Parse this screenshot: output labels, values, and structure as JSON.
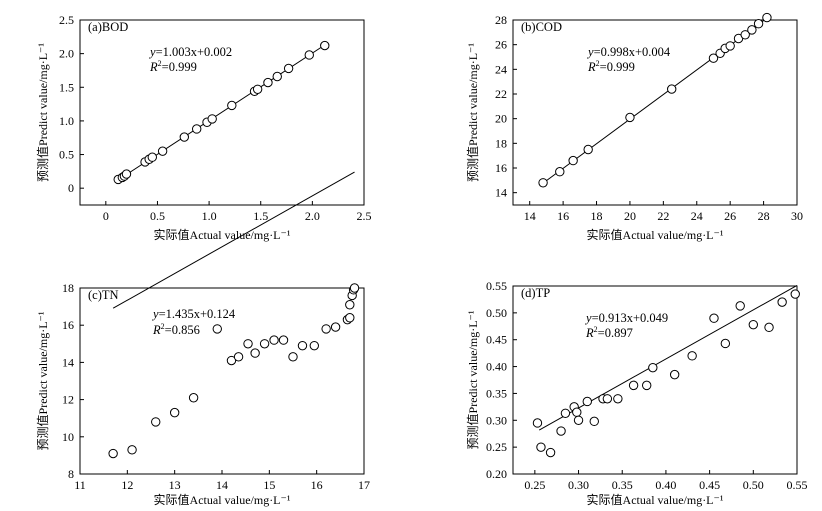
{
  "chart_data": [
    {
      "type": "scatter",
      "title": "(a)BOD",
      "xlabel": "实际值Actual value/mg·L⁻¹",
      "ylabel": "预测值Predict value/mg·L⁻¹",
      "xlim": [
        -0.25,
        2.5
      ],
      "ylim": [
        -0.25,
        2.5
      ],
      "xticks": [
        "0",
        "0.5",
        "1.0",
        "1.5",
        "2.0",
        "2.5"
      ],
      "yticks": [
        "0",
        "0.5",
        "1.0",
        "1.5",
        "2.0",
        "2.5"
      ],
      "equation_prefix": "y",
      "equation_text": "=1.003x+0.002",
      "r2_prefix": "R",
      "r2_text": "=0.999",
      "fit": {
        "slope": 1.003,
        "intercept": 0.002
      },
      "x": [
        0.12,
        0.16,
        0.18,
        0.2,
        0.38,
        0.42,
        0.45,
        0.55,
        0.76,
        0.88,
        0.98,
        1.03,
        1.22,
        1.44,
        1.47,
        1.57,
        1.66,
        1.77,
        1.97,
        2.12
      ],
      "y": [
        0.13,
        0.16,
        0.18,
        0.21,
        0.39,
        0.43,
        0.46,
        0.55,
        0.76,
        0.88,
        0.98,
        1.03,
        1.23,
        1.44,
        1.47,
        1.57,
        1.66,
        1.78,
        1.98,
        2.12
      ]
    },
    {
      "type": "scatter",
      "title": "(b)COD",
      "xlabel": "实际值Actual value/mg·L⁻¹",
      "ylabel": "预测值Predict value/mg·L⁻¹",
      "xlim": [
        13,
        30
      ],
      "ylim": [
        13,
        28
      ],
      "xticks": [
        "14",
        "16",
        "18",
        "20",
        "22",
        "24",
        "26",
        "28",
        "30"
      ],
      "yticks": [
        "14",
        "16",
        "18",
        "20",
        "22",
        "24",
        "26",
        "28"
      ],
      "equation_prefix": "y",
      "equation_text": "=0.998x+0.004",
      "r2_prefix": "R",
      "r2_text": "=0.999",
      "fit": {
        "slope": 0.998,
        "intercept": 0.004
      },
      "x": [
        14.8,
        15.8,
        16.6,
        17.5,
        20.0,
        22.5,
        25.0,
        25.4,
        25.7,
        26.0,
        26.5,
        26.9,
        27.3,
        27.7,
        28.2
      ],
      "y": [
        14.8,
        15.7,
        16.6,
        17.5,
        20.1,
        22.4,
        24.9,
        25.3,
        25.7,
        25.9,
        26.5,
        26.8,
        27.2,
        27.7,
        28.2
      ]
    },
    {
      "type": "scatter",
      "title": "(c)TN",
      "xlabel": "实际值Actual value/mg·L⁻¹",
      "ylabel": "预测值Predict value/mg·L⁻¹",
      "xlim": [
        11,
        17
      ],
      "ylim": [
        8,
        18
      ],
      "xticks": [
        "11",
        "12",
        "13",
        "14",
        "15",
        "16",
        "17"
      ],
      "yticks": [
        "8",
        "10",
        "12",
        "14",
        "16",
        "18"
      ],
      "equation_prefix": "y",
      "equation_text": "=1.435x+0.124",
      "r2_prefix": "R",
      "r2_text": "=0.856",
      "fit": {
        "slope": 1.435,
        "intercept": 0.124,
        "x_range": [
          11.7,
          16.8
        ]
      },
      "x": [
        11.7,
        12.1,
        12.6,
        13.0,
        13.4,
        13.9,
        14.2,
        14.35,
        14.55,
        14.7,
        14.9,
        15.1,
        15.3,
        15.5,
        15.7,
        15.95,
        16.2,
        16.4,
        16.65,
        16.7,
        16.7,
        16.75,
        16.78,
        16.8
      ],
      "y": [
        9.1,
        9.3,
        10.8,
        11.3,
        12.1,
        15.8,
        14.1,
        14.3,
        15.0,
        14.5,
        15.0,
        15.2,
        15.2,
        14.3,
        14.9,
        14.9,
        15.8,
        15.9,
        16.3,
        16.4,
        17.1,
        17.6,
        17.9,
        18.0
      ]
    },
    {
      "type": "scatter",
      "title": "(d)TP",
      "xlabel": "实际值Actual value/mg·L⁻¹",
      "ylabel": "预测值Predict value/mg·L⁻¹",
      "xlim": [
        0.225,
        0.55
      ],
      "ylim": [
        0.2,
        0.55
      ],
      "xticks": [
        "0.25",
        "0.30",
        "0.35",
        "0.40",
        "0.45",
        "0.50",
        "0.55"
      ],
      "yticks": [
        "0.20",
        "0.25",
        "0.30",
        "0.35",
        "0.40",
        "0.45",
        "0.50",
        "0.55"
      ],
      "equation_prefix": "y",
      "equation_text": "=0.913x+0.049",
      "r2_prefix": "R",
      "r2_text": "=0.897",
      "fit": {
        "slope": 0.913,
        "intercept": 0.049,
        "x_range": [
          0.255,
          0.55
        ]
      },
      "x": [
        0.253,
        0.257,
        0.268,
        0.28,
        0.285,
        0.295,
        0.298,
        0.3,
        0.31,
        0.318,
        0.328,
        0.333,
        0.345,
        0.363,
        0.378,
        0.385,
        0.41,
        0.43,
        0.455,
        0.468,
        0.485,
        0.5,
        0.518,
        0.533,
        0.548
      ],
      "y": [
        0.295,
        0.25,
        0.24,
        0.28,
        0.313,
        0.325,
        0.315,
        0.3,
        0.335,
        0.298,
        0.34,
        0.34,
        0.34,
        0.365,
        0.365,
        0.398,
        0.385,
        0.42,
        0.49,
        0.443,
        0.513,
        0.478,
        0.473,
        0.52,
        0.535
      ]
    }
  ]
}
